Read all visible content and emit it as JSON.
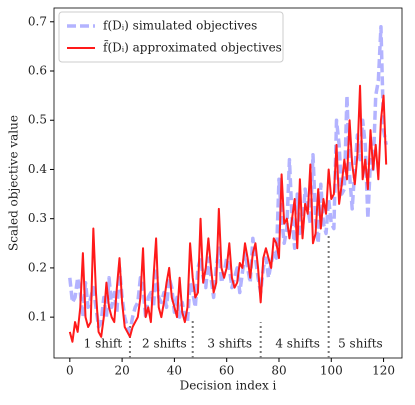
{
  "chart_data": {
    "type": "line",
    "xlabel": "Decision index i",
    "ylabel": "Scaled objective value",
    "xlim": [
      -6.05,
      127.05
    ],
    "ylim": [
      0.017,
      0.728
    ],
    "xticks": [
      0,
      20,
      40,
      60,
      80,
      100,
      120
    ],
    "yticks": [
      0.1,
      0.2,
      0.3,
      0.4,
      0.5,
      0.6,
      0.7
    ],
    "legend": "upper left",
    "x": [
      0,
      1,
      2,
      3,
      4,
      5,
      6,
      7,
      8,
      9,
      10,
      11,
      12,
      13,
      14,
      15,
      16,
      17,
      18,
      19,
      20,
      21,
      22,
      23,
      24,
      25,
      26,
      27,
      28,
      29,
      30,
      31,
      32,
      33,
      34,
      35,
      36,
      37,
      38,
      39,
      40,
      41,
      42,
      43,
      44,
      45,
      46,
      47,
      48,
      49,
      50,
      51,
      52,
      53,
      54,
      55,
      56,
      57,
      58,
      59,
      60,
      61,
      62,
      63,
      64,
      65,
      66,
      67,
      68,
      69,
      70,
      71,
      72,
      73,
      74,
      75,
      76,
      77,
      78,
      79,
      80,
      81,
      82,
      83,
      84,
      85,
      86,
      87,
      88,
      89,
      90,
      91,
      92,
      93,
      94,
      95,
      96,
      97,
      98,
      99,
      100,
      101,
      102,
      103,
      104,
      105,
      106,
      107,
      108,
      109,
      110,
      111,
      112,
      113,
      114,
      115,
      116,
      117,
      118,
      119,
      120,
      121
    ],
    "series": [
      {
        "name": "f(Dᵢ) simulated objectives",
        "color": "#b3b3ff",
        "dashed": true,
        "values": [
          0.18,
          0.13,
          0.14,
          0.18,
          0.15,
          0.1,
          0.17,
          0.12,
          0.14,
          0.16,
          0.12,
          0.08,
          0.09,
          0.14,
          0.1,
          0.18,
          0.12,
          0.15,
          0.11,
          0.2,
          0.14,
          0.1,
          0.08,
          0.07,
          0.1,
          0.12,
          0.13,
          0.18,
          0.16,
          0.1,
          0.14,
          0.15,
          0.12,
          0.2,
          0.14,
          0.13,
          0.15,
          0.12,
          0.18,
          0.16,
          0.11,
          0.14,
          0.1,
          0.13,
          0.1,
          0.09,
          0.17,
          0.15,
          0.12,
          0.2,
          0.22,
          0.18,
          0.16,
          0.22,
          0.18,
          0.14,
          0.2,
          0.24,
          0.17,
          0.19,
          0.22,
          0.2,
          0.16,
          0.18,
          0.2,
          0.15,
          0.19,
          0.23,
          0.2,
          0.17,
          0.26,
          0.22,
          0.18,
          0.15,
          0.2,
          0.22,
          0.18,
          0.21,
          0.23,
          0.22,
          0.38,
          0.3,
          0.25,
          0.28,
          0.42,
          0.3,
          0.24,
          0.35,
          0.27,
          0.28,
          0.36,
          0.32,
          0.29,
          0.43,
          0.3,
          0.25,
          0.37,
          0.29,
          0.27,
          0.34,
          0.29,
          0.28,
          0.5,
          0.45,
          0.35,
          0.36,
          0.55,
          0.39,
          0.32,
          0.4,
          0.47,
          0.42,
          0.5,
          0.45,
          0.3,
          0.42,
          0.4,
          0.55,
          0.58,
          0.69,
          0.48,
          0.45
        ]
      },
      {
        "name": "f̃(Dᵢ) approximated objectives",
        "color": "#ff1a1a",
        "dashed": false,
        "values": [
          0.07,
          0.05,
          0.09,
          0.07,
          0.12,
          0.23,
          0.1,
          0.08,
          0.09,
          0.28,
          0.15,
          0.07,
          0.06,
          0.1,
          0.17,
          0.12,
          0.1,
          0.09,
          0.16,
          0.22,
          0.13,
          0.08,
          0.07,
          0.06,
          0.08,
          0.09,
          0.1,
          0.14,
          0.24,
          0.1,
          0.12,
          0.09,
          0.18,
          0.26,
          0.12,
          0.1,
          0.13,
          0.17,
          0.2,
          0.14,
          0.12,
          0.1,
          0.18,
          0.11,
          0.09,
          0.12,
          0.25,
          0.18,
          0.14,
          0.15,
          0.3,
          0.17,
          0.2,
          0.26,
          0.2,
          0.15,
          0.17,
          0.32,
          0.2,
          0.18,
          0.2,
          0.25,
          0.18,
          0.16,
          0.17,
          0.21,
          0.2,
          0.25,
          0.22,
          0.18,
          0.23,
          0.25,
          0.2,
          0.13,
          0.22,
          0.24,
          0.22,
          0.2,
          0.26,
          0.25,
          0.22,
          0.39,
          0.29,
          0.3,
          0.26,
          0.3,
          0.34,
          0.24,
          0.38,
          0.26,
          0.33,
          0.31,
          0.41,
          0.25,
          0.27,
          0.36,
          0.28,
          0.34,
          0.31,
          0.4,
          0.34,
          0.35,
          0.45,
          0.33,
          0.37,
          0.42,
          0.38,
          0.5,
          0.41,
          0.37,
          0.43,
          0.57,
          0.38,
          0.42,
          0.36,
          0.48,
          0.4,
          0.45,
          0.38,
          0.5,
          0.55,
          0.41
        ]
      }
    ],
    "shift_lines": [
      {
        "x": 23,
        "y": 0.085
      },
      {
        "x": 47,
        "y": 0.095
      },
      {
        "x": 73,
        "y": 0.09
      },
      {
        "x": 99,
        "y": 0.27
      }
    ],
    "annotations": [
      "1 shift",
      "2 shifts",
      "3 shifts",
      "4 shifts",
      "5 shifts"
    ]
  }
}
